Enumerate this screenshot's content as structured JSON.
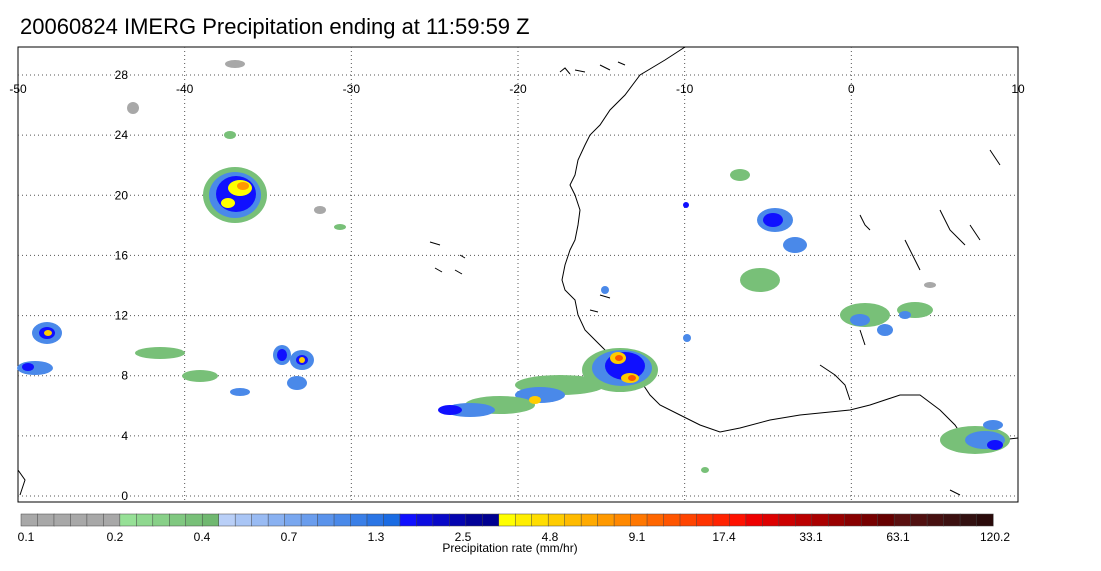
{
  "title": "20060824 IMERG Precipitation ending at 11:59:59 Z",
  "map": {
    "lon_labels": [
      "-50",
      "-40",
      "-30",
      "-20",
      "-10",
      "0",
      "10"
    ],
    "lat_labels": [
      "28",
      "24",
      "20",
      "16",
      "12",
      "8",
      "4",
      "0"
    ],
    "gridlines": true,
    "region": "West Africa / Eastern Atlantic"
  },
  "colorbar": {
    "caption": "Precipitation rate (mm/hr)",
    "tick_labels": [
      "0.1",
      "0.2",
      "0.4",
      "0.7",
      "1.3",
      "2.5",
      "4.8",
      "9.1",
      "17.4",
      "33.1",
      "63.1",
      "120.2"
    ],
    "colors": [
      "#a8a8a8",
      "#a8a8a8",
      "#a8a8a8",
      "#a8a8a8",
      "#a8a8a8",
      "#a8a8a8",
      "#96e096",
      "#8fd88f",
      "#88d088",
      "#80c880",
      "#78c078",
      "#70b870",
      "#b9cff7",
      "#a9c5f5",
      "#99bbf3",
      "#89b1f1",
      "#79a7ef",
      "#6a9ded",
      "#5a93eb",
      "#4a89e9",
      "#3a7fe7",
      "#2a75e5",
      "#1a6be3",
      "#1010ff",
      "#0c0ce0",
      "#0808c8",
      "#0404b0",
      "#020298",
      "#000090",
      "#ffff00",
      "#ffee00",
      "#ffdd00",
      "#ffcc00",
      "#ffbb00",
      "#ffaa00",
      "#ff9900",
      "#ff8800",
      "#ff7700",
      "#ff6600",
      "#ff5500",
      "#ff4400",
      "#ff3300",
      "#ff2200",
      "#ff1100",
      "#ee0000",
      "#dd0000",
      "#cc0000",
      "#bb0000",
      "#aa0000",
      "#990000",
      "#880000",
      "#770000",
      "#660000",
      "#5a1010",
      "#501010",
      "#461010",
      "#3c1010",
      "#321010",
      "#2a0a0a"
    ]
  }
}
